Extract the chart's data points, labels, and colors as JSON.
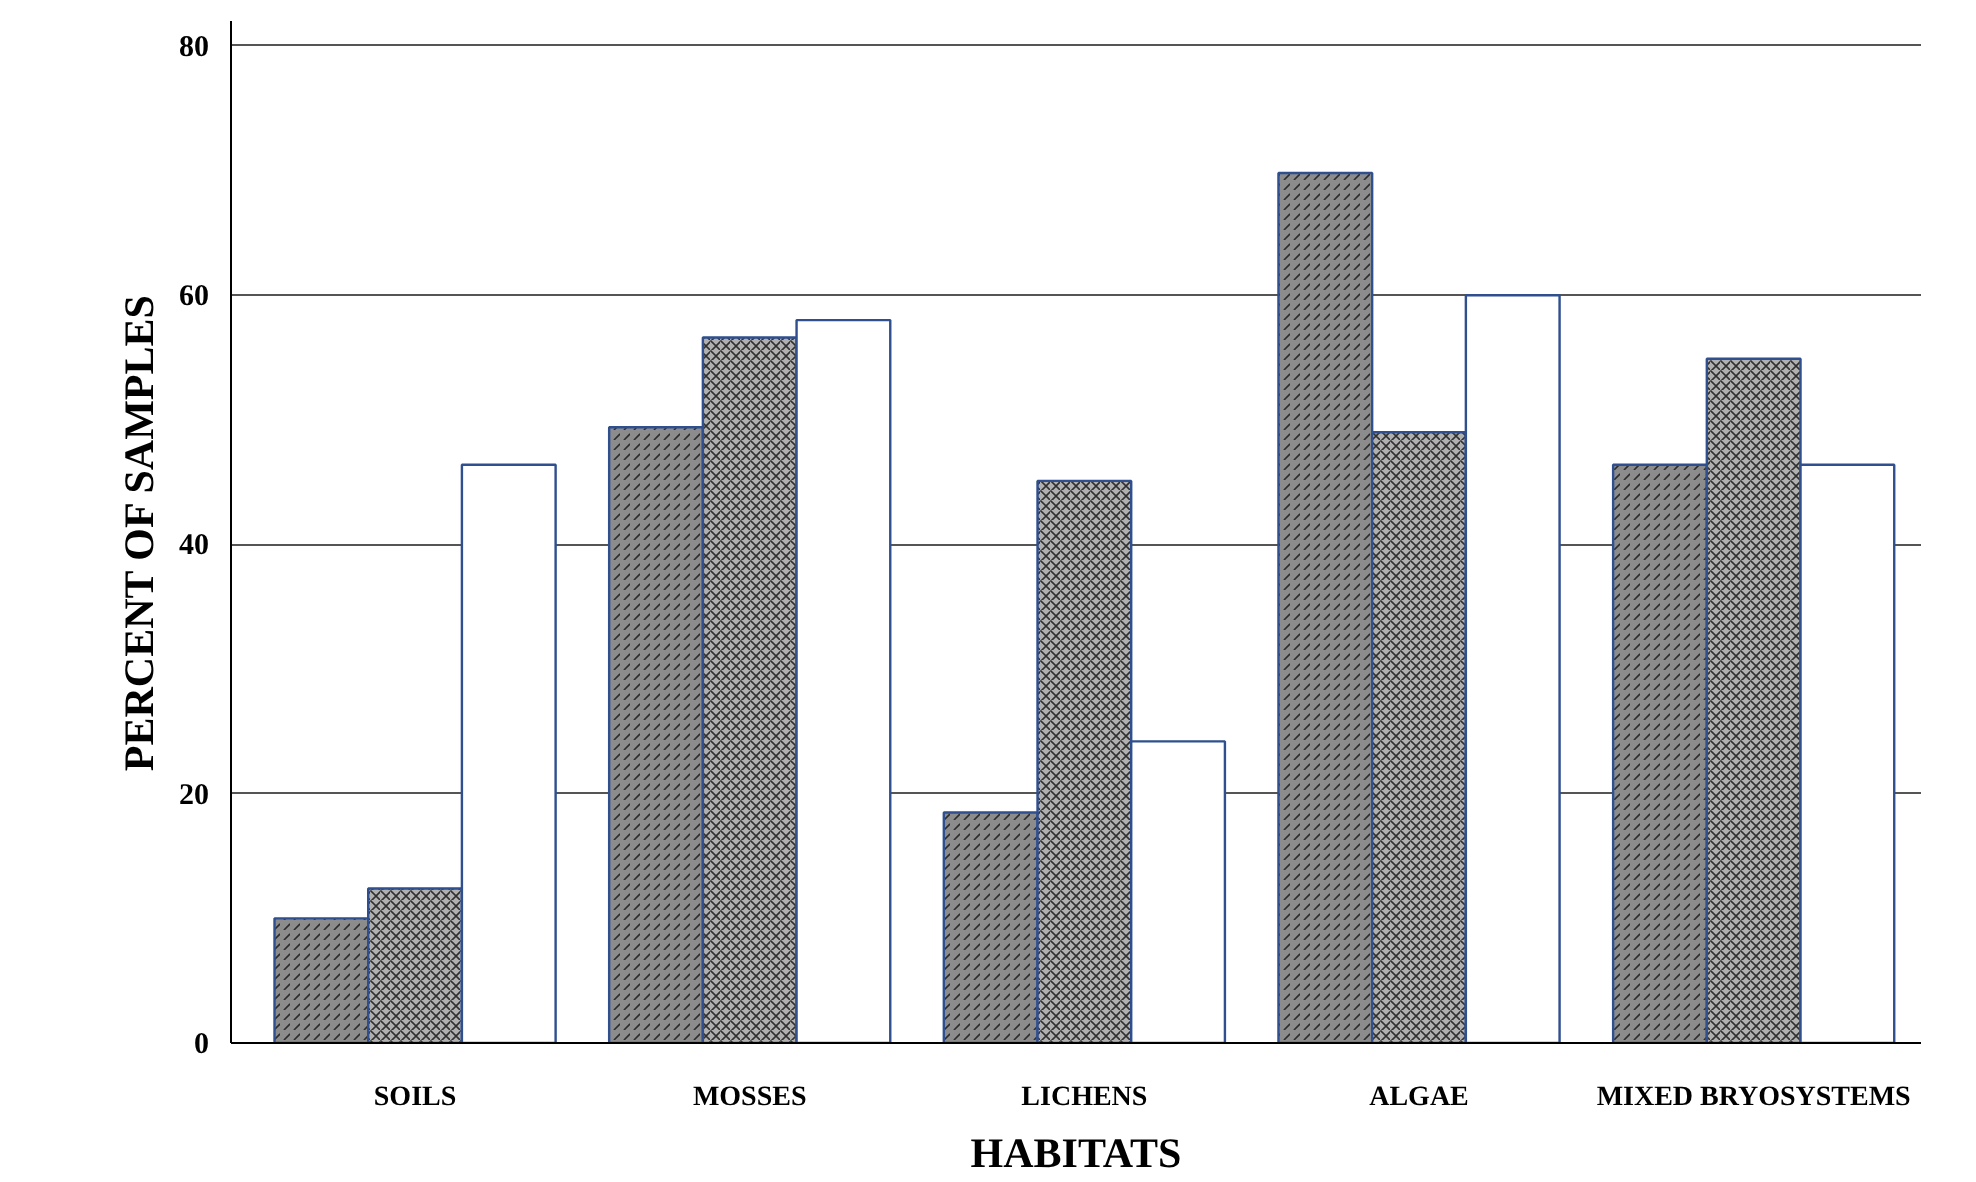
{
  "chart_data": {
    "type": "bar",
    "xlabel": "HABITATS",
    "ylabel": "PERCENT OF SAMPLES",
    "categories": [
      "SOILS",
      "MOSSES",
      "LICHENS",
      "ALGAE",
      "MIXED BRYOSYSTEMS"
    ],
    "series": [
      {
        "color": "#8c8c8c",
        "values": [
          10.0,
          49.4,
          18.5,
          69.8,
          46.4
        ]
      },
      {
        "color": "#b0b0b0",
        "values": [
          12.4,
          56.6,
          45.1,
          49.0,
          54.9
        ]
      },
      {
        "color": "#ffffff",
        "values": [
          46.4,
          58.0,
          24.2,
          60.0,
          46.4
        ]
      }
    ],
    "ylim": [
      0,
      82
    ],
    "yticks": [
      0,
      20,
      40,
      60,
      80
    ],
    "grid": "y"
  }
}
